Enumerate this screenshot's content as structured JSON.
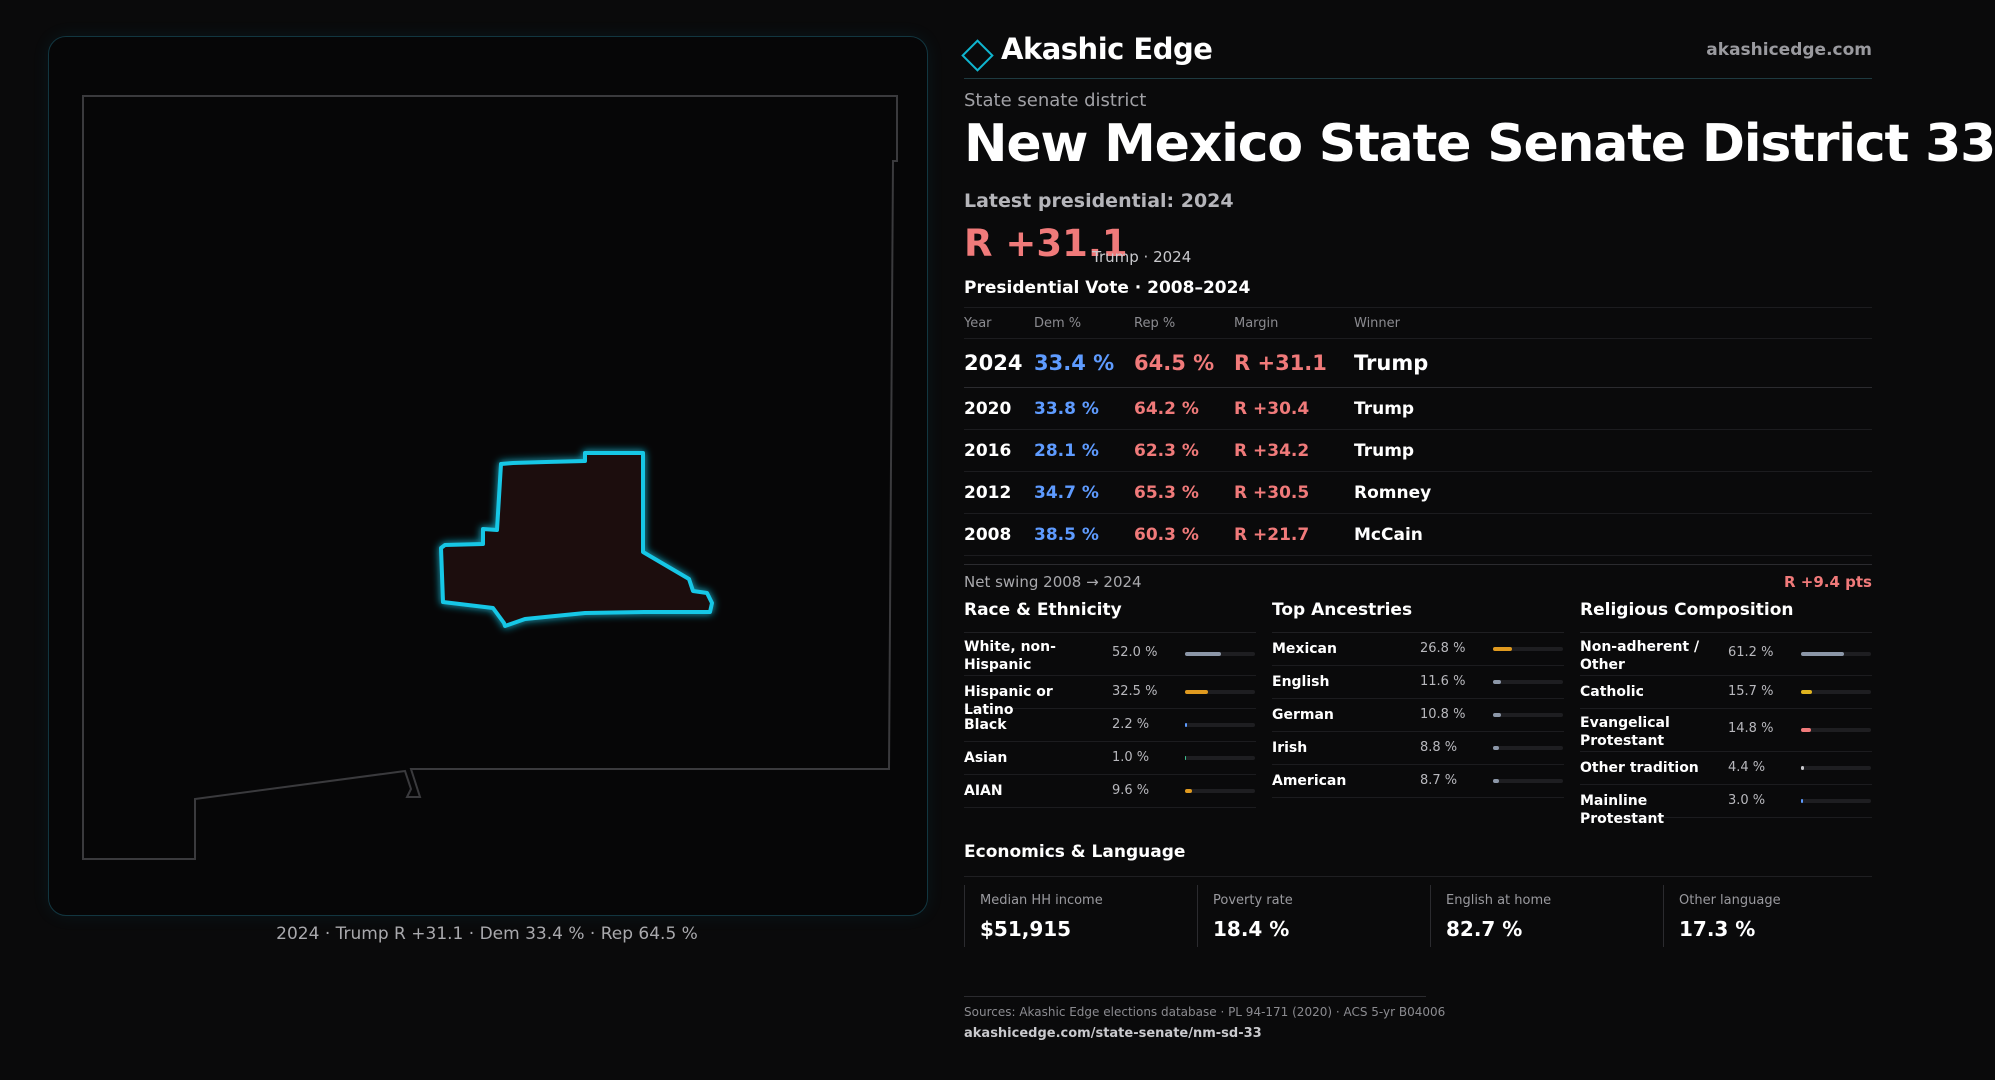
{
  "map": {
    "caption": "2024 · Trump R +31.1 · Dem 33.4 % · Rep 64.5 %",
    "state_outline_color": "#3a3a3d",
    "district_outline_color": "#19c7e6",
    "district_fill_color": "#1c0e10"
  },
  "brand": {
    "name": "Akashic Edge",
    "url": "akashicedge.com",
    "accent": "#0fb5cf"
  },
  "header": {
    "kicker": "State senate district",
    "title": "New Mexico State Senate District 33",
    "latest_label": "Latest presidential: 2024",
    "margin": "R +31.1",
    "margin_sub": "Trump · 2024"
  },
  "pres": {
    "heading": "Presidential Vote · 2008–2024",
    "columns": [
      "Year",
      "Dem %",
      "Rep %",
      "Margin",
      "Winner"
    ],
    "rows": [
      {
        "year": "2024",
        "dem": "33.4 %",
        "rep": "64.5 %",
        "margin": "R +31.1",
        "winner": "Trump"
      },
      {
        "year": "2020",
        "dem": "33.8 %",
        "rep": "64.2 %",
        "margin": "R +30.4",
        "winner": "Trump"
      },
      {
        "year": "2016",
        "dem": "28.1 %",
        "rep": "62.3 %",
        "margin": "R +34.2",
        "winner": "Trump"
      },
      {
        "year": "2012",
        "dem": "34.7 %",
        "rep": "65.3 %",
        "margin": "R +30.5",
        "winner": "Romney"
      },
      {
        "year": "2008",
        "dem": "38.5 %",
        "rep": "60.3 %",
        "margin": "R +21.7",
        "winner": "McCain"
      }
    ],
    "swing_label": "Net swing 2008 → 2024",
    "swing_value": "R +9.4 pts"
  },
  "race": {
    "heading": "Race & Ethnicity",
    "rows": [
      {
        "label": "White, non-Hispanic",
        "pct": "52.0 %",
        "value": 52.0,
        "color": "#8c97a8"
      },
      {
        "label": "Hispanic or Latino",
        "pct": "32.5 %",
        "value": 32.5,
        "color": "#e09a1f"
      },
      {
        "label": "Black",
        "pct": "2.2 %",
        "value": 2.2,
        "color": "#5e9bff"
      },
      {
        "label": "Asian",
        "pct": "1.0 %",
        "value": 1.0,
        "color": "#3fbf8f"
      },
      {
        "label": "AIAN",
        "pct": "9.6 %",
        "value": 9.6,
        "color": "#e09a1f"
      }
    ]
  },
  "ancestry": {
    "heading": "Top Ancestries",
    "rows": [
      {
        "label": "Mexican",
        "pct": "26.8 %",
        "value": 26.8,
        "color": "#e09a1f"
      },
      {
        "label": "English",
        "pct": "11.6 %",
        "value": 11.6,
        "color": "#8c97a8"
      },
      {
        "label": "German",
        "pct": "10.8 %",
        "value": 10.8,
        "color": "#8c97a8"
      },
      {
        "label": "Irish",
        "pct": "8.8 %",
        "value": 8.8,
        "color": "#8c97a8"
      },
      {
        "label": "American",
        "pct": "8.7 %",
        "value": 8.7,
        "color": "#8c97a8"
      }
    ]
  },
  "religion": {
    "heading": "Religious Composition",
    "rows": [
      {
        "label": "Non-adherent / Other",
        "pct": "61.2 %",
        "value": 61.2,
        "color": "#8c97a8"
      },
      {
        "label": "Catholic",
        "pct": "15.7 %",
        "value": 15.7,
        "color": "#e0b41f"
      },
      {
        "label": "Evangelical Protestant",
        "pct": "14.8 %",
        "value": 14.8,
        "color": "#f07a7a"
      },
      {
        "label": "Other tradition",
        "pct": "4.4 %",
        "value": 4.4,
        "color": "#c9c9cd"
      },
      {
        "label": "Mainline Protestant",
        "pct": "3.0 %",
        "value": 3.0,
        "color": "#5e9bff"
      }
    ]
  },
  "econ": {
    "heading": "Economics & Language",
    "cards": [
      {
        "label": "Median HH income",
        "value": "$51,915"
      },
      {
        "label": "Poverty rate",
        "value": "18.4 %"
      },
      {
        "label": "English at home",
        "value": "82.7 %"
      },
      {
        "label": "Other language",
        "value": "17.3 %"
      }
    ]
  },
  "sources": {
    "line1": "Sources: Akashic Edge elections database · PL 94-171 (2020) · ACS 5-yr B04006",
    "line2": "akashicedge.com/state-senate/nm-sd-33"
  }
}
